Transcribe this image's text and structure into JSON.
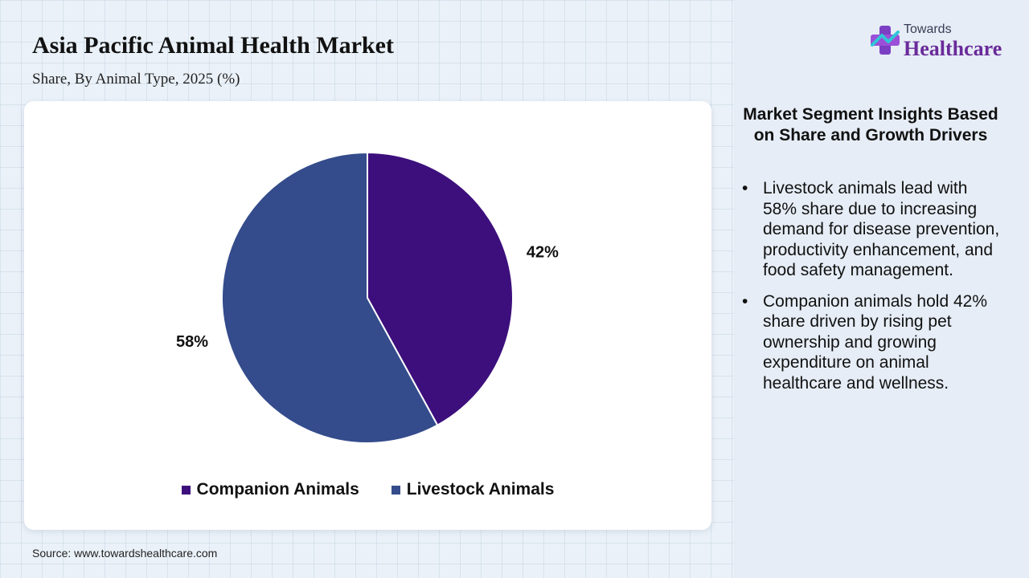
{
  "header": {
    "title": "Asia Pacific Animal Health Market",
    "subtitle": "Share, By Animal Type, 2025 (%)"
  },
  "chart_data": {
    "type": "pie",
    "categories": [
      "Companion Animals",
      "Livestock Animals"
    ],
    "values": [
      42,
      58
    ],
    "labels": [
      "42%",
      "58%"
    ],
    "colors": [
      "#3d0f7c",
      "#344c8c"
    ],
    "legend_position": "bottom",
    "start_angle": "top-clockwise"
  },
  "source": "Source: www.towardshealthcare.com",
  "logo": {
    "top_text": "Towards",
    "bottom_text": "Healthcare"
  },
  "insights": {
    "title": "Market Segment Insights Based on Share and Growth Drivers",
    "items": [
      "Livestock animals lead with 58% share due to increasing demand for disease prevention, productivity enhancement, and food safety management.",
      "Companion animals hold 42% share driven by rising pet ownership and growing expenditure on animal healthcare and wellness."
    ]
  }
}
